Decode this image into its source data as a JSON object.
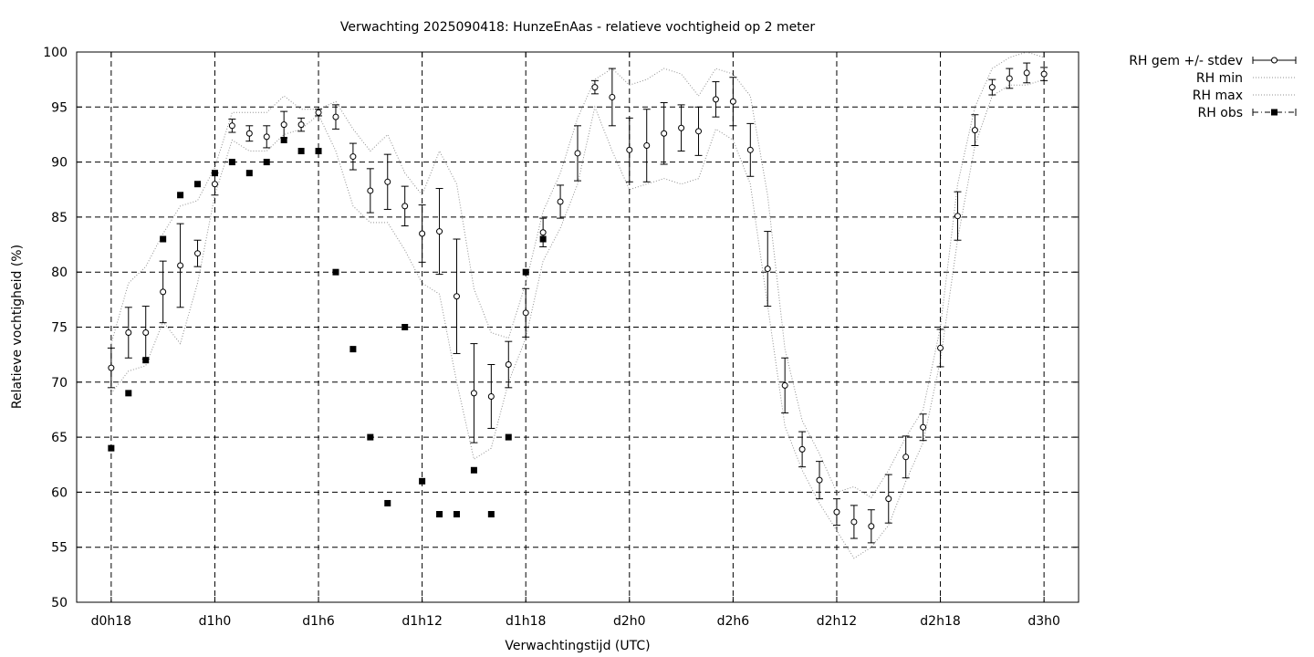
{
  "chart_data": {
    "type": "line",
    "title": "Verwachting 2025090418: HunzeEnAas - relatieve vochtigheid op 2 meter",
    "xlabel": "Verwachtingstijd (UTC)",
    "ylabel": "Relatieve vochtigheid (%)",
    "ylim": [
      50,
      100
    ],
    "yticks": [
      50,
      55,
      60,
      65,
      70,
      75,
      80,
      85,
      90,
      95,
      100
    ],
    "xlim": [
      16,
      74
    ],
    "xticks": [
      {
        "x": 18,
        "label": "d0h18"
      },
      {
        "x": 24,
        "label": "d1h0"
      },
      {
        "x": 30,
        "label": "d1h6"
      },
      {
        "x": 36,
        "label": "d1h12"
      },
      {
        "x": 42,
        "label": "d1h18"
      },
      {
        "x": 48,
        "label": "d2h0"
      },
      {
        "x": 54,
        "label": "d2h6"
      },
      {
        "x": 60,
        "label": "d2h12"
      },
      {
        "x": 66,
        "label": "d2h18"
      },
      {
        "x": 72,
        "label": "d3h0"
      }
    ],
    "grid": true,
    "legend_position": "outside-top-right",
    "legend": [
      {
        "label": "RH gem +/- stdev",
        "style": "errorbar"
      },
      {
        "label": "RH min",
        "style": "dotted"
      },
      {
        "label": "RH max",
        "style": "dotted"
      },
      {
        "label": "RH obs",
        "style": "square-dashdot"
      }
    ],
    "x": [
      18,
      19,
      20,
      21,
      22,
      23,
      24,
      25,
      26,
      27,
      28,
      29,
      30,
      31,
      32,
      33,
      34,
      35,
      36,
      37,
      38,
      39,
      40,
      41,
      42,
      43,
      44,
      45,
      46,
      47,
      48,
      49,
      50,
      51,
      52,
      53,
      54,
      55,
      56,
      57,
      58,
      59,
      60,
      61,
      62,
      63,
      64,
      65,
      66,
      67,
      68,
      69,
      70,
      71,
      72
    ],
    "series": [
      {
        "name": "RH gem +/- stdev",
        "mean": [
          71.3,
          74.5,
          74.5,
          78.2,
          80.6,
          81.7,
          88.0,
          93.3,
          92.6,
          92.3,
          93.4,
          93.4,
          94.5,
          94.1,
          90.5,
          87.4,
          88.2,
          86.0,
          83.5,
          83.7,
          77.8,
          69.0,
          68.7,
          71.6,
          76.3,
          83.6,
          86.4,
          90.8,
          96.8,
          95.9,
          91.1,
          91.5,
          92.6,
          93.1,
          92.8,
          95.7,
          95.5,
          91.1,
          80.3,
          69.7,
          63.9,
          61.1,
          58.2,
          57.3,
          56.9,
          59.4,
          63.2,
          65.9,
          73.1,
          85.1,
          92.9,
          96.8,
          97.6,
          98.1,
          98.0
        ],
        "stdev": [
          1.8,
          2.3,
          2.4,
          2.8,
          3.8,
          1.2,
          1.0,
          0.6,
          0.7,
          1.0,
          1.2,
          0.6,
          0.3,
          1.1,
          1.2,
          2.0,
          2.5,
          1.8,
          2.6,
          3.9,
          5.2,
          4.5,
          2.9,
          2.1,
          2.2,
          1.3,
          1.5,
          2.5,
          0.6,
          2.6,
          2.9,
          3.3,
          2.8,
          2.1,
          2.2,
          1.6,
          2.2,
          2.4,
          3.4,
          2.5,
          1.6,
          1.7,
          1.2,
          1.5,
          1.5,
          2.2,
          1.9,
          1.2,
          1.7,
          2.2,
          1.4,
          0.7,
          0.9,
          0.9,
          0.6
        ]
      },
      {
        "name": "RH min",
        "values": [
          69,
          71,
          71.5,
          75.5,
          73.5,
          79,
          87,
          92,
          91,
          91,
          92.5,
          93,
          94.3,
          91,
          86,
          84.5,
          84.5,
          82,
          79,
          78,
          70,
          63,
          64,
          70,
          74,
          81,
          84,
          88,
          95,
          91,
          87.5,
          88,
          88.5,
          88,
          88.5,
          93,
          92,
          88,
          77,
          66,
          62,
          59,
          56.5,
          54,
          55,
          57,
          61,
          64.5,
          72,
          83,
          91.5,
          96,
          97,
          97,
          97.5
        ]
      },
      {
        "name": "RH max",
        "values": [
          73.5,
          79,
          80.5,
          83.5,
          86,
          86.5,
          89.5,
          94.5,
          94.5,
          94.5,
          96,
          94.8,
          94.8,
          95.5,
          93,
          91,
          92.5,
          89,
          87,
          91,
          88,
          78.5,
          74.5,
          74,
          79,
          85.5,
          89,
          94,
          97.5,
          98.5,
          97,
          97.5,
          98.5,
          98,
          96,
          98.5,
          98,
          96,
          87,
          73,
          66.5,
          63.5,
          60,
          60.5,
          59.5,
          62,
          65,
          67.5,
          75,
          88,
          95,
          98.5,
          99.5,
          100,
          99.5
        ]
      },
      {
        "name": "RH obs",
        "points": [
          {
            "x": 18,
            "y": 64
          },
          {
            "x": 19,
            "y": 69
          },
          {
            "x": 20,
            "y": 72
          },
          {
            "x": 21,
            "y": 83
          },
          {
            "x": 22,
            "y": 87
          },
          {
            "x": 23,
            "y": 88
          },
          {
            "x": 24,
            "y": 89
          },
          {
            "x": 25,
            "y": 90
          },
          {
            "x": 26,
            "y": 89
          },
          {
            "x": 27,
            "y": 90
          },
          {
            "x": 28,
            "y": 92
          },
          {
            "x": 29,
            "y": 91
          },
          {
            "x": 30,
            "y": 91
          },
          {
            "x": 31,
            "y": 80
          },
          {
            "x": 32,
            "y": 73
          },
          {
            "x": 33,
            "y": 65
          },
          {
            "x": 34,
            "y": 59
          },
          {
            "x": 35,
            "y": 75
          },
          {
            "x": 36,
            "y": 61
          },
          {
            "x": 37,
            "y": 58
          },
          {
            "x": 38,
            "y": 58
          },
          {
            "x": 39,
            "y": 62
          },
          {
            "x": 40,
            "y": 58
          },
          {
            "x": 41,
            "y": 65
          },
          {
            "x": 42,
            "y": 80
          },
          {
            "x": 43,
            "y": 83
          }
        ]
      }
    ]
  }
}
